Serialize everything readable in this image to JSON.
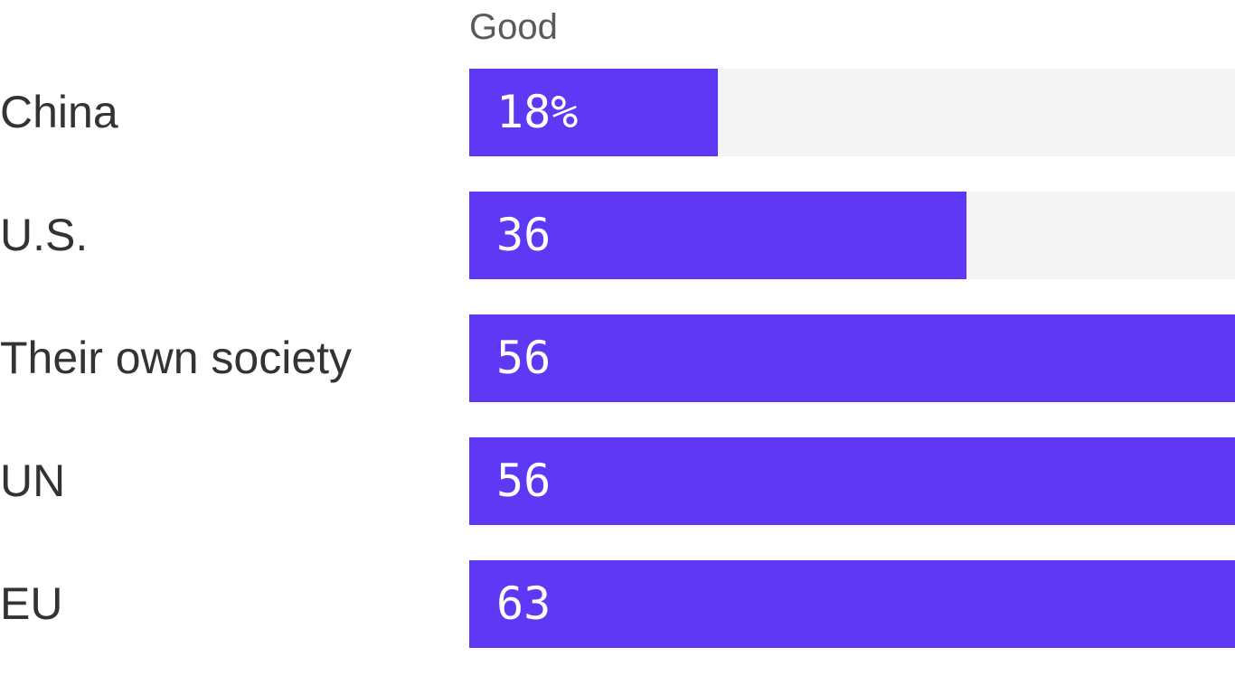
{
  "chart_data": {
    "type": "bar",
    "orientation": "horizontal",
    "column_header": "Good",
    "categories": [
      "China",
      "U.S.",
      "Their own society",
      "UN",
      "EU"
    ],
    "values": [
      18,
      36,
      56,
      56,
      63
    ],
    "value_labels": [
      "18%",
      "36",
      "56",
      "56",
      "63"
    ],
    "unit": "%",
    "xlim": [
      0,
      100
    ],
    "grid": false,
    "colors": {
      "bar": "#5f38f5",
      "track": "#f4f4f4",
      "label": "#333333",
      "value_text": "#ffffff"
    }
  }
}
